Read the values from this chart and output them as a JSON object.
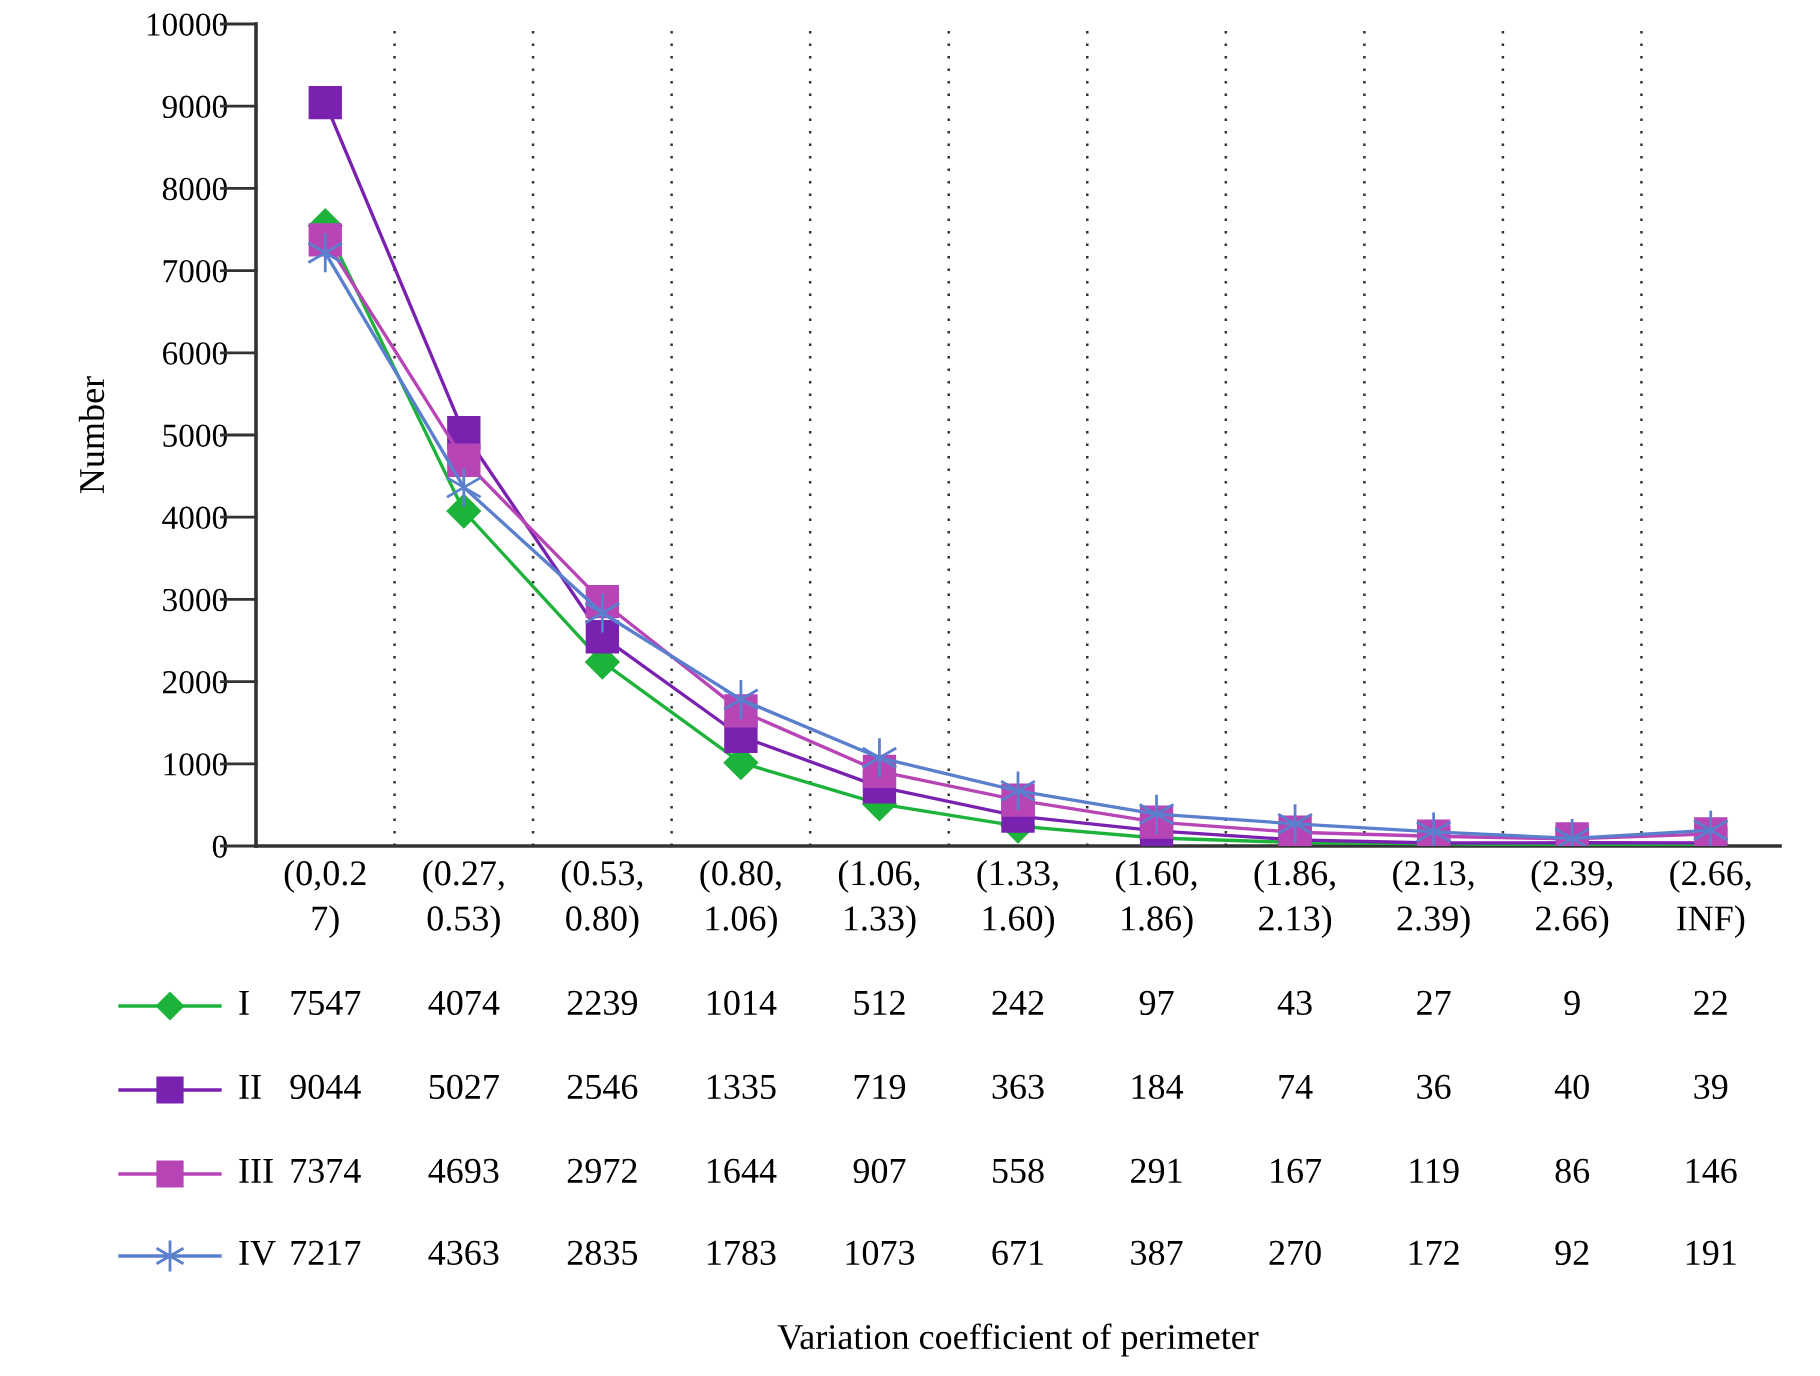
{
  "chart_data": {
    "type": "line",
    "annotations": [
      "Variation coefficient of perimeter"
    ],
    "ylabel": "Number",
    "categories": [
      "(0,0.2\n7)",
      "(0.27,\n0.53)",
      "(0.53,\n0.80)",
      "(0.80,\n1.06)",
      "(1.06,\n1.33)",
      "(1.33,\n1.60)",
      "(1.60,\n1.86)",
      "(1.86,\n2.13)",
      "(2.13,\n2.39)",
      "(2.39,\n2.66)",
      "(2.66,\nINF)"
    ],
    "series": [
      {
        "name": "I",
        "color": "#1db33a",
        "marker": "diamond",
        "values": [
          7547,
          4074,
          2239,
          1014,
          512,
          242,
          97,
          43,
          27,
          9,
          22
        ]
      },
      {
        "name": "II",
        "color": "#7a22b0",
        "marker": "square",
        "values": [
          9044,
          5027,
          2546,
          1335,
          719,
          363,
          184,
          74,
          36,
          40,
          39
        ]
      },
      {
        "name": "III",
        "color": "#b845b5",
        "marker": "square",
        "values": [
          7374,
          4693,
          2972,
          1644,
          907,
          558,
          291,
          167,
          119,
          86,
          146
        ]
      },
      {
        "name": "IV",
        "color": "#5a7fcc",
        "marker": "cross",
        "values": [
          7217,
          4363,
          2835,
          1783,
          1073,
          671,
          387,
          270,
          172,
          92,
          191
        ]
      }
    ],
    "ylim": [
      0,
      10000
    ],
    "yticks": [
      0,
      1000,
      2000,
      3000,
      4000,
      5000,
      6000,
      7000,
      8000,
      9000,
      10000
    ],
    "grid": "x",
    "legend": "bottom left",
    "data_labels": true,
    "line_style": "solid"
  }
}
